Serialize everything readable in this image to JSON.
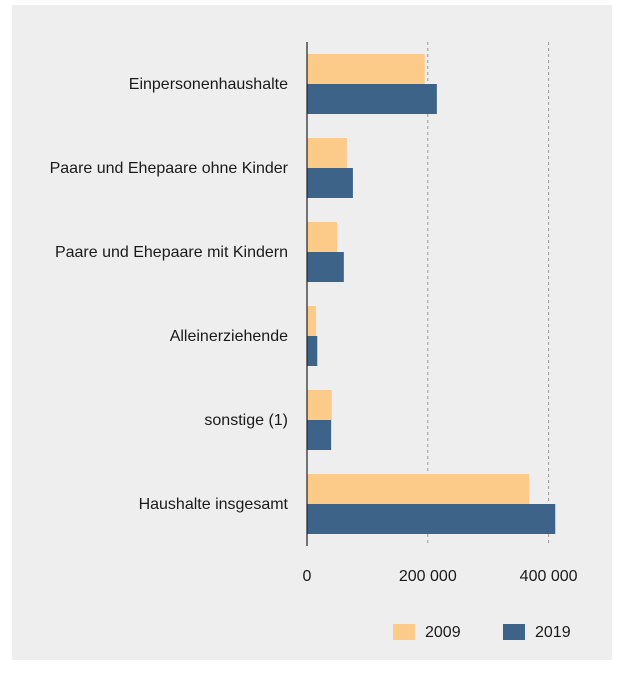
{
  "chart_data": {
    "type": "hbar",
    "categories": [
      "Einpersonenhaushalte",
      "Paare und Ehepaare ohne Kinder",
      "Paare und Ehepaare mit Kindern",
      "Alleinerziehende",
      "sonstige (1)",
      "Haushalte insgesamt"
    ],
    "series": [
      {
        "name": "2009",
        "color": "#fccb8a",
        "values": [
          195000,
          66000,
          50000,
          15000,
          41000,
          368000
        ]
      },
      {
        "name": "2019",
        "color": "#3d6488",
        "values": [
          215000,
          76000,
          61000,
          17000,
          40000,
          411000
        ]
      }
    ],
    "xlim": [
      0,
      500000
    ],
    "xticks": [
      0,
      {
        "value": 200000,
        "label": "200 000"
      },
      {
        "value": 400000,
        "label": "400 000"
      }
    ],
    "grid": true,
    "legend": "bottom-right"
  }
}
